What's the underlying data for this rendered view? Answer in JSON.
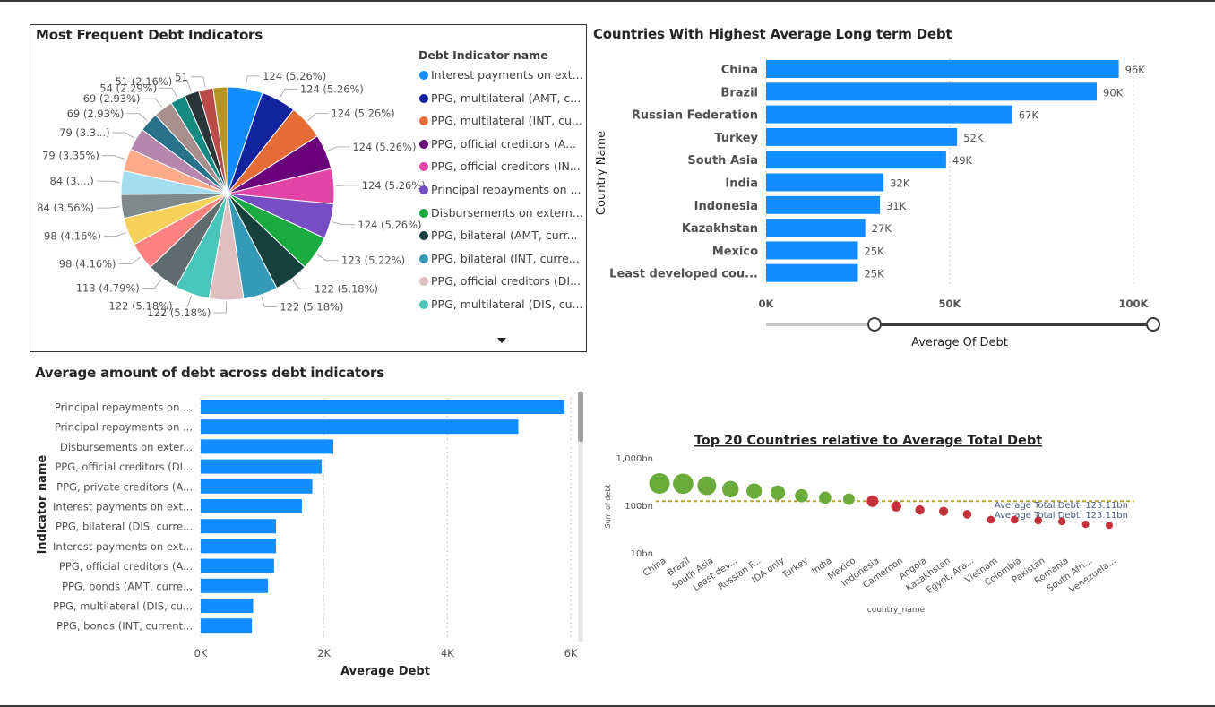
{
  "colors": {
    "accent": "#118DFF",
    "slider_track": "#3a3a3a",
    "slider_track_light": "#c8c6c4",
    "scatter_above": "#6AAB3C",
    "scatter_below": "#C4313B",
    "avg_line": "#B3A53D"
  },
  "pie_panel": {
    "title": "Most Frequent Debt Indicators",
    "legend_title": "Debt Indicator name",
    "legend_items": [
      {
        "label": "Interest payments on ext...",
        "color": "#118DFF"
      },
      {
        "label": "PPG, multilateral (AMT, c...",
        "color": "#12239E"
      },
      {
        "label": "PPG, multilateral (INT, cu...",
        "color": "#E66C37"
      },
      {
        "label": "PPG, official creditors (A...",
        "color": "#6B007B"
      },
      {
        "label": "PPG, official creditors (IN...",
        "color": "#E044A7"
      },
      {
        "label": "Principal repayments on ...",
        "color": "#744EC2"
      },
      {
        "label": "Disbursements on extern...",
        "color": "#1AAB40"
      },
      {
        "label": "PPG, bilateral (AMT, curr...",
        "color": "#15403D"
      },
      {
        "label": "PPG, bilateral (INT, curre...",
        "color": "#3599B8"
      },
      {
        "label": "PPG, official creditors (DI...",
        "color": "#DFBFBF"
      },
      {
        "label": "PPG, multilateral (DIS, cu...",
        "color": "#4AC5BB"
      }
    ],
    "more_icon": "caret-down-icon"
  },
  "bar_panel_top": {
    "title": "Countries With Highest Average Long term Debt",
    "ylabel": "Country Name",
    "xlabel": "Average Of Debt",
    "slider_icon": "range-slider-handle"
  },
  "bar_panel_bottom": {
    "title": "Average amount of debt across debt indicators",
    "ylabel": "indicator name",
    "xlabel": "Average Debt"
  },
  "scatter_panel": {
    "title": "Top 20 Countries relative to Average Total Debt",
    "ylabel": "Sum of debt",
    "xlabel": "country_name",
    "avg_labels": [
      "Average Total Debt: 123.11bn",
      "Average Total Debt: 123.11bn"
    ]
  },
  "chart_data": [
    {
      "type": "pie",
      "title": "Most Frequent Debt Indicators",
      "legend_title": "Debt Indicator name",
      "legend": "right",
      "slices": [
        {
          "value": 124,
          "label": "124 (5.26%)",
          "color": "#118DFF"
        },
        {
          "value": 124,
          "label": "124 (5.26%)",
          "color": "#12239E"
        },
        {
          "value": 124,
          "label": "124 (5.26%)",
          "color": "#E66C37"
        },
        {
          "value": 124,
          "label": "124 (5.26%)",
          "color": "#6B007B"
        },
        {
          "value": 124,
          "label": "124 (5.26%)",
          "color": "#E044A7"
        },
        {
          "value": 124,
          "label": "124 (5.26%)",
          "color": "#744EC2"
        },
        {
          "value": 123,
          "label": "123 (5.22%)",
          "color": "#1AAB40"
        },
        {
          "value": 122,
          "label": "122 (5.18%)",
          "color": "#15403D"
        },
        {
          "value": 122,
          "label": "122 (5.18%)",
          "color": "#3599B8"
        },
        {
          "value": 122,
          "label": "122 (5.18%)",
          "color": "#DFBFBF"
        },
        {
          "value": 122,
          "label": "122 (5.18%)",
          "color": "#4AC5BB"
        },
        {
          "value": 113,
          "label": "113 (4.79%)",
          "color": "#5F6B6D"
        },
        {
          "value": 98,
          "label": "98 (4.16%)",
          "color": "#FB8281"
        },
        {
          "value": 98,
          "label": "98 (4.16%)",
          "color": "#F4D25A"
        },
        {
          "value": 84,
          "label": "84 (3.56%)",
          "color": "#7F898A"
        },
        {
          "value": 84,
          "label": "84 (3....)",
          "color": "#A4DDEE"
        },
        {
          "value": 79,
          "label": "79 (3.35%)",
          "color": "#FDAB89"
        },
        {
          "value": 79,
          "label": "79 (3.3...)",
          "color": "#B687AC"
        },
        {
          "value": 69,
          "label": "69 (2.93%)",
          "color": "#28738A"
        },
        {
          "value": 69,
          "label": "69 (2.93%)",
          "color": "#A78F8F"
        },
        {
          "value": 54,
          "label": "54 (2.29%)",
          "color": "#168980"
        },
        {
          "value": 51,
          "label": "51 (2.16%)",
          "color": "#293537"
        },
        {
          "value": 51,
          "label": "51",
          "color": "#BB4A4A"
        },
        {
          "value": 51,
          "label": "",
          "color": "#B59525"
        }
      ]
    },
    {
      "type": "bar",
      "orientation": "horizontal",
      "title": "Countries With Highest Average Long term Debt",
      "ylabel": "Country Name",
      "xlabel": "Average Of Debt",
      "categories": [
        "China",
        "Brazil",
        "Russian Federation",
        "Turkey",
        "South Asia",
        "India",
        "Indonesia",
        "Kazakhstan",
        "Mexico",
        "Least developed cou..."
      ],
      "values": [
        96000,
        90000,
        67000,
        52000,
        49000,
        32000,
        31000,
        27000,
        25000,
        25000
      ],
      "data_labels": [
        "96K",
        "90K",
        "67K",
        "52K",
        "49K",
        "32K",
        "31K",
        "27K",
        "25K",
        "25K"
      ],
      "xlim": [
        0,
        100000
      ],
      "x_ticks": [
        0,
        50000,
        100000
      ],
      "x_tick_labels": [
        "0K",
        "50K",
        "100K"
      ],
      "grid": true
    },
    {
      "type": "bar",
      "orientation": "horizontal",
      "title": "Average amount of debt across debt indicators",
      "ylabel": "indicator name",
      "xlabel": "Average Debt",
      "categories": [
        "Principal repayments on ...",
        "Principal repayments on ...",
        "Disbursements on exter...",
        "PPG, official creditors (DI...",
        "PPG, private creditors (A...",
        "Interest payments on ext...",
        "PPG, bilateral (DIS, curre...",
        "Interest payments on ext...",
        "PPG, official creditors (A...",
        "PPG, bonds (AMT, curre...",
        "PPG, multilateral (DIS, cu...",
        "PPG, bonds (INT, current..."
      ],
      "values": [
        5900,
        5150,
        2150,
        1960,
        1810,
        1640,
        1220,
        1220,
        1190,
        1090,
        850,
        830
      ],
      "xlim": [
        0,
        6000
      ],
      "x_ticks": [
        0,
        2000,
        4000,
        6000
      ],
      "x_tick_labels": [
        "0K",
        "2K",
        "4K",
        "6K"
      ],
      "grid": true
    },
    {
      "type": "scatter",
      "title": "Top 20 Countries relative to Average Total Debt",
      "xlabel": "country_name",
      "ylabel": "Sum of debt",
      "y_scale": "log",
      "ylim": [
        10,
        1000
      ],
      "y_ticks": [
        10,
        100,
        1000
      ],
      "y_tick_labels": [
        "10bn",
        "100bn",
        "1,000bn"
      ],
      "categories": [
        "China",
        "Brazil",
        "South Asia",
        "Least dev...",
        "Russian F...",
        "IDA only",
        "Turkey",
        "India",
        "Mexico",
        "Indonesia",
        "Cameroon",
        "Angola",
        "Kazakhstan",
        "Egypt, Ara...",
        "Vietnam",
        "Colombia",
        "Pakistan",
        "Romania",
        "South Afri...",
        "Venezuela..."
      ],
      "values": [
        290,
        285,
        260,
        220,
        200,
        185,
        160,
        145,
        135,
        123,
        95,
        80,
        75,
        65,
        50,
        50,
        48,
        46,
        40,
        38
      ],
      "reference_line": {
        "value": 123.11,
        "label": "Average Total Debt: 123.11bn"
      },
      "grid": false
    }
  ]
}
